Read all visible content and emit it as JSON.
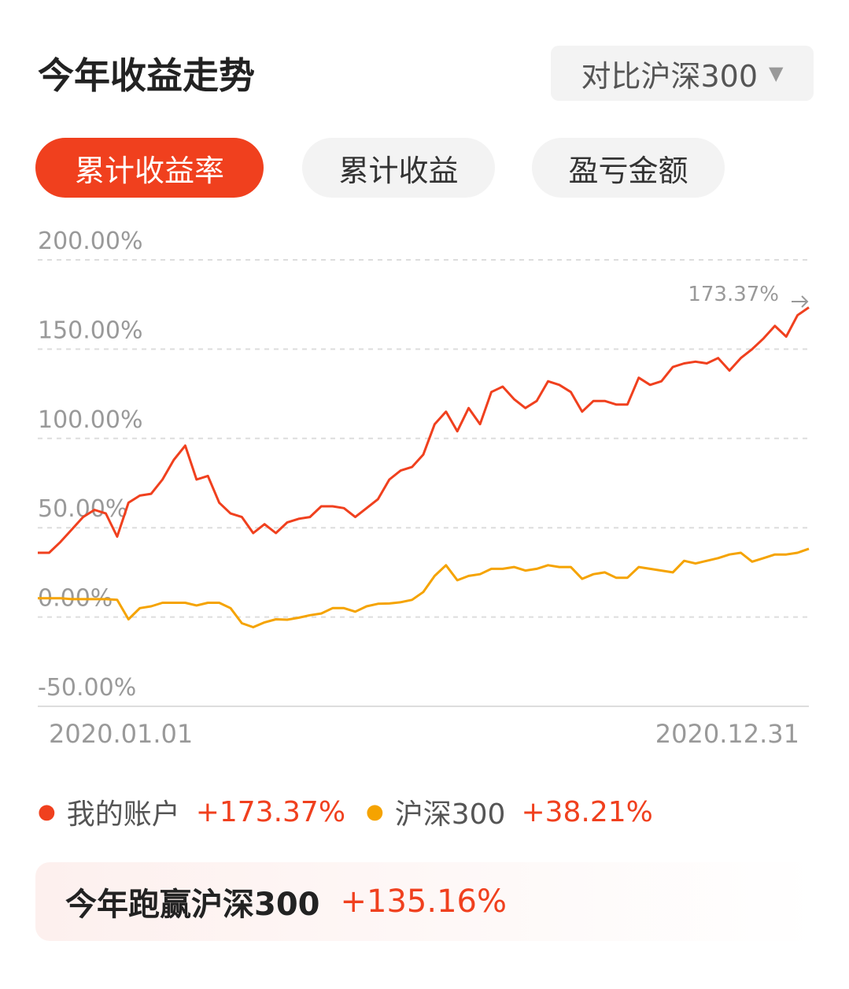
{
  "header": {
    "title": "今年收益走势",
    "compare": "对比沪深300"
  },
  "tabs": [
    "累计收益率",
    "累计收益",
    "盈亏金额"
  ],
  "chart_data": {
    "type": "line",
    "categories": [
      "2020.01.01",
      null,
      null,
      null,
      null,
      null,
      null,
      null,
      null,
      null,
      null,
      null,
      null,
      null,
      null,
      null,
      null,
      null,
      null,
      null,
      null,
      null,
      null,
      null,
      null,
      null,
      null,
      null,
      null,
      null,
      null,
      null,
      null,
      null,
      null,
      null,
      null,
      null,
      null,
      null,
      null,
      null,
      null,
      null,
      null,
      null,
      null,
      null,
      null,
      null,
      null,
      null,
      null,
      null,
      null,
      null,
      null,
      null,
      null,
      null,
      null,
      null,
      null,
      null,
      null,
      null,
      null,
      null,
      "2020.12.31"
    ],
    "series": [
      {
        "name": "我的账户",
        "color": "#f0401e",
        "return_label": "+173.37%",
        "values": [
          36,
          36,
          42,
          49,
          56,
          60,
          58,
          45,
          64,
          68,
          69,
          77,
          88,
          96,
          77,
          79,
          64,
          58,
          56,
          47,
          52,
          47,
          53,
          55,
          56,
          62,
          62,
          61,
          56,
          61,
          66,
          77,
          82,
          84,
          91,
          108,
          115,
          104,
          117,
          108,
          126,
          129,
          122,
          117,
          121,
          132,
          130,
          126,
          115,
          121,
          121,
          119,
          119,
          134,
          130,
          132,
          140,
          142,
          143,
          142,
          145,
          138,
          145,
          150,
          156,
          163,
          157,
          169,
          173.37
        ]
      },
      {
        "name": "沪深300",
        "color": "#f5a300",
        "return_label": "+38.21%",
        "values": [
          10.5,
          10.5,
          10.5,
          10,
          10,
          10,
          10,
          9.6,
          -1.3,
          5,
          6,
          8,
          8,
          8,
          6.5,
          8,
          8,
          5,
          -3.5,
          -5.7,
          -3,
          -1.3,
          -1.5,
          -0.4,
          1,
          2,
          5,
          5,
          3,
          6,
          7.4,
          7.6,
          8.3,
          9.6,
          14,
          23,
          29,
          20.6,
          23,
          24,
          27,
          27,
          28,
          26,
          27,
          29,
          28,
          28,
          21.4,
          24,
          25,
          22,
          22,
          28,
          27,
          26,
          25,
          31.5,
          30,
          31.5,
          33,
          35,
          36,
          31,
          33,
          35,
          35,
          36,
          38.21
        ]
      }
    ],
    "annotation": "173.37%",
    "ylim": [
      -50,
      200
    ],
    "yticks": [
      {
        "value": -50,
        "label": "-50.00%"
      },
      {
        "value": 0,
        "label": "0.00%"
      },
      {
        "value": 50,
        "label": "50.00%"
      },
      {
        "value": 100,
        "label": "100.00%"
      },
      {
        "value": 150,
        "label": "150.00%"
      },
      {
        "value": 200,
        "label": "200.00%"
      }
    ],
    "grid": true
  },
  "footer": {
    "label": "今年跑赢沪深300",
    "value": "+135.16%"
  }
}
